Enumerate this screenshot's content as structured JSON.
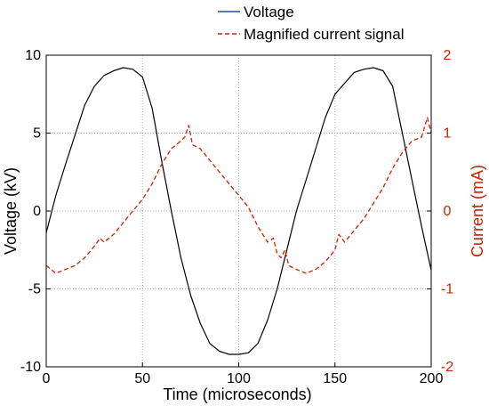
{
  "chart_data": {
    "type": "line",
    "xlabel": "Time (microseconds)",
    "ylabel_left": "Voltage (kV)",
    "ylabel_right": "Current (mA)",
    "xlim": [
      0,
      200
    ],
    "ylim_left": [
      -10,
      10
    ],
    "ylim_right": [
      -2,
      2
    ],
    "grid": true,
    "legend_placement": "top",
    "x_ticks": [
      "0",
      "50",
      "100",
      "150",
      "200"
    ],
    "y_ticks_left": [
      "-10",
      "-5",
      "0",
      "5",
      "10"
    ],
    "y_ticks_right": [
      "-2",
      "-1",
      "0",
      "1",
      "2"
    ],
    "colors": {
      "voltage": "#000000",
      "voltage_legend": "#1f4e9c",
      "current": "#cc2200",
      "right_axis": "#cc2200",
      "grid": "#b0b0b0"
    },
    "series": [
      {
        "name": "Voltage",
        "axis": "left",
        "x": [
          0,
          5,
          10,
          15,
          20,
          25,
          30,
          35,
          40,
          45,
          50,
          55,
          60,
          65,
          70,
          75,
          80,
          85,
          90,
          95,
          100,
          105,
          110,
          115,
          120,
          125,
          130,
          135,
          140,
          145,
          150,
          155,
          160,
          165,
          170,
          175,
          180,
          185,
          190,
          195,
          200
        ],
        "values": [
          -1.4,
          1.0,
          3.0,
          4.9,
          6.8,
          8.0,
          8.7,
          9.0,
          9.2,
          9.1,
          8.6,
          6.6,
          3.2,
          0.0,
          -3.0,
          -5.4,
          -7.2,
          -8.5,
          -9.0,
          -9.2,
          -9.2,
          -9.1,
          -8.5,
          -7.0,
          -5.0,
          -2.5,
          0.0,
          2.0,
          4.0,
          6.0,
          7.5,
          8.2,
          8.9,
          9.1,
          9.2,
          9.0,
          8.0,
          5.0,
          2.0,
          -1.0,
          -3.8
        ]
      },
      {
        "name": "Magnified current signal",
        "axis": "right",
        "x": [
          0,
          5,
          10,
          15,
          20,
          25,
          28,
          30,
          35,
          40,
          45,
          50,
          55,
          60,
          65,
          70,
          72,
          74,
          76,
          80,
          85,
          90,
          95,
          100,
          105,
          110,
          115,
          118,
          120,
          122,
          124,
          126,
          130,
          135,
          140,
          145,
          150,
          152,
          155,
          160,
          165,
          170,
          175,
          180,
          185,
          190,
          195,
          198,
          200
        ],
        "values": [
          -0.7,
          -0.8,
          -0.75,
          -0.7,
          -0.6,
          -0.45,
          -0.35,
          -0.4,
          -0.3,
          -0.15,
          0.0,
          0.15,
          0.35,
          0.6,
          0.8,
          0.9,
          0.95,
          1.1,
          0.85,
          0.8,
          0.65,
          0.5,
          0.35,
          0.2,
          0.05,
          -0.2,
          -0.4,
          -0.35,
          -0.55,
          -0.6,
          -0.5,
          -0.7,
          -0.75,
          -0.8,
          -0.75,
          -0.65,
          -0.5,
          -0.3,
          -0.4,
          -0.25,
          -0.1,
          0.1,
          0.3,
          0.55,
          0.75,
          0.9,
          0.95,
          1.2,
          1.0
        ]
      }
    ]
  }
}
